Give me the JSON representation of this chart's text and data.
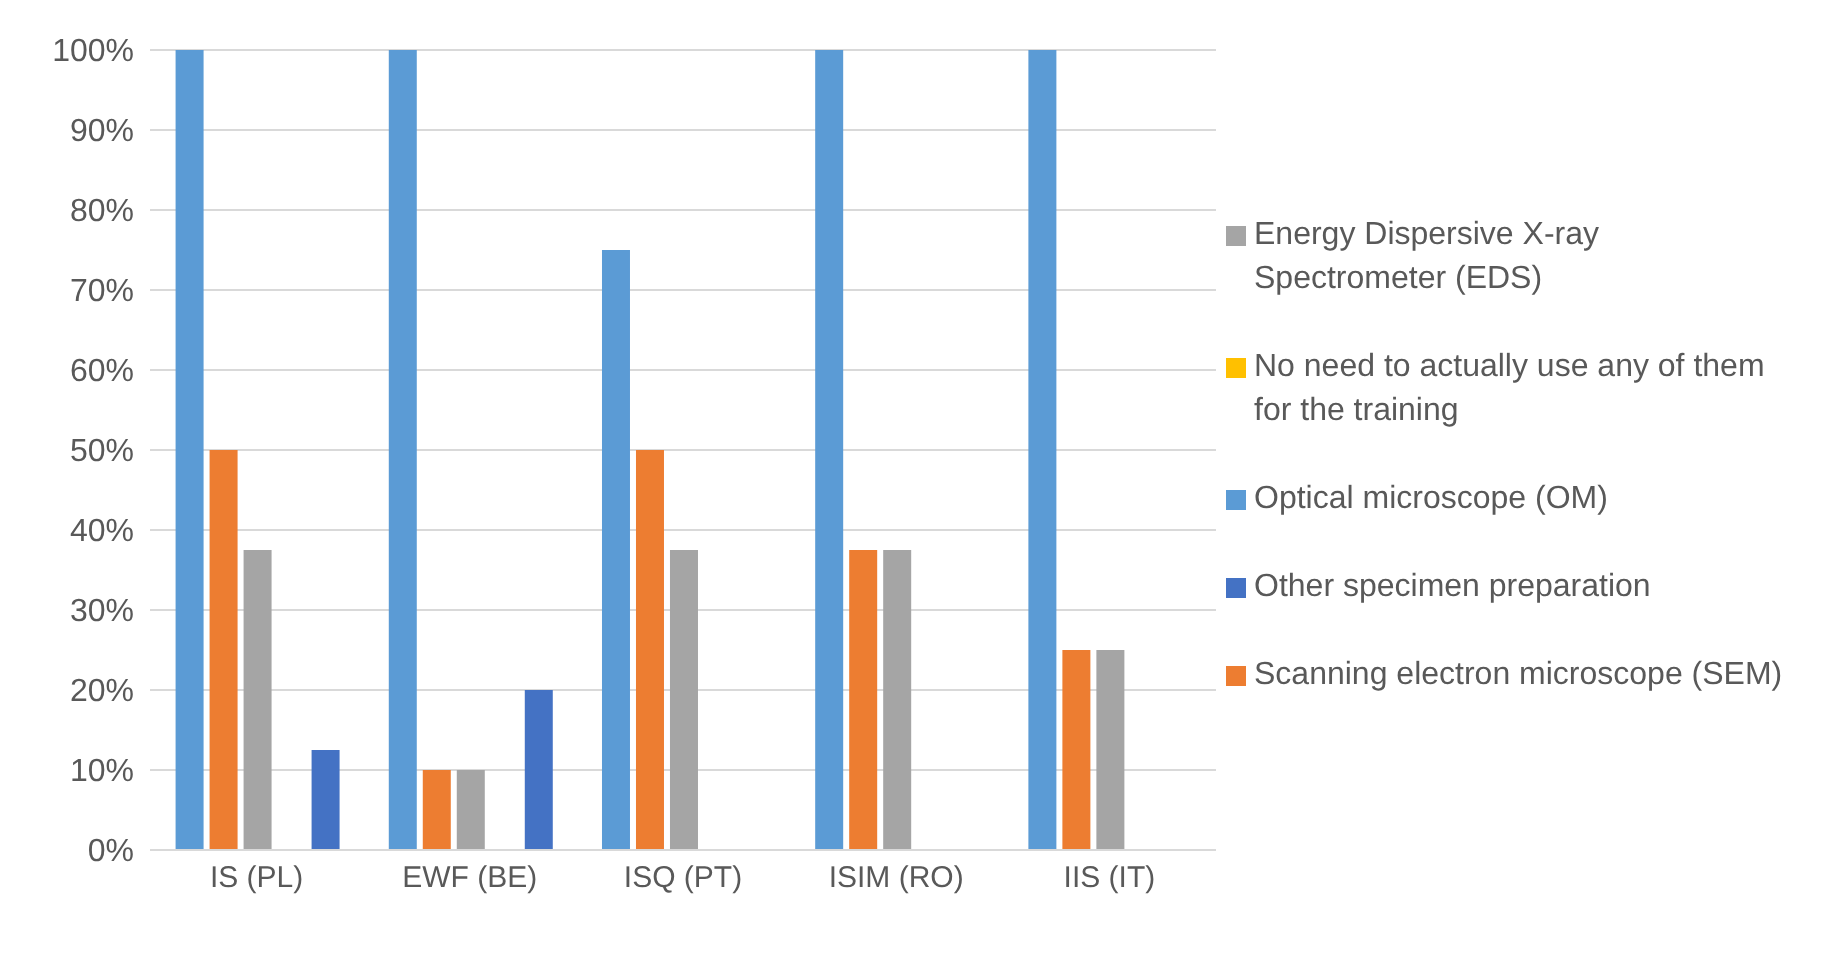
{
  "chart_data": {
    "type": "bar",
    "categories": [
      "IS (PL)",
      "EWF (BE)",
      "ISQ (PT)",
      "ISIM (RO)",
      "IIS (IT)"
    ],
    "series": [
      {
        "name": "Optical microscope (OM)",
        "color": "#5b9bd5",
        "values": [
          100,
          100,
          75,
          100,
          100
        ]
      },
      {
        "name": "Scanning electron microscope (SEM)",
        "color": "#ed7d31",
        "values": [
          50,
          10,
          50,
          37.5,
          25
        ]
      },
      {
        "name": "Energy Dispersive X-ray Spectrometer (EDS)",
        "color": "#a5a5a5",
        "values": [
          37.5,
          10,
          37.5,
          37.5,
          25
        ]
      },
      {
        "name": "No need to actually use any of them for the training",
        "color": "#ffc000",
        "values": [
          0,
          0,
          0,
          0,
          0
        ]
      },
      {
        "name": "Other specimen preparation",
        "color": "#4472c4",
        "values": [
          12.5,
          20,
          0,
          0,
          0
        ]
      }
    ],
    "ylim": [
      0,
      100
    ],
    "yticks": [
      {
        "value": 0,
        "label": "0%"
      },
      {
        "value": 10,
        "label": "10%"
      },
      {
        "value": 20,
        "label": "20%"
      },
      {
        "value": 30,
        "label": "30%"
      },
      {
        "value": 40,
        "label": "40%"
      },
      {
        "value": 50,
        "label": "50%"
      },
      {
        "value": 60,
        "label": "60%"
      },
      {
        "value": 70,
        "label": "70%"
      },
      {
        "value": 80,
        "label": "80%"
      },
      {
        "value": 90,
        "label": "90%"
      },
      {
        "value": 100,
        "label": "100%"
      }
    ],
    "grid": "y",
    "legend": "right"
  }
}
